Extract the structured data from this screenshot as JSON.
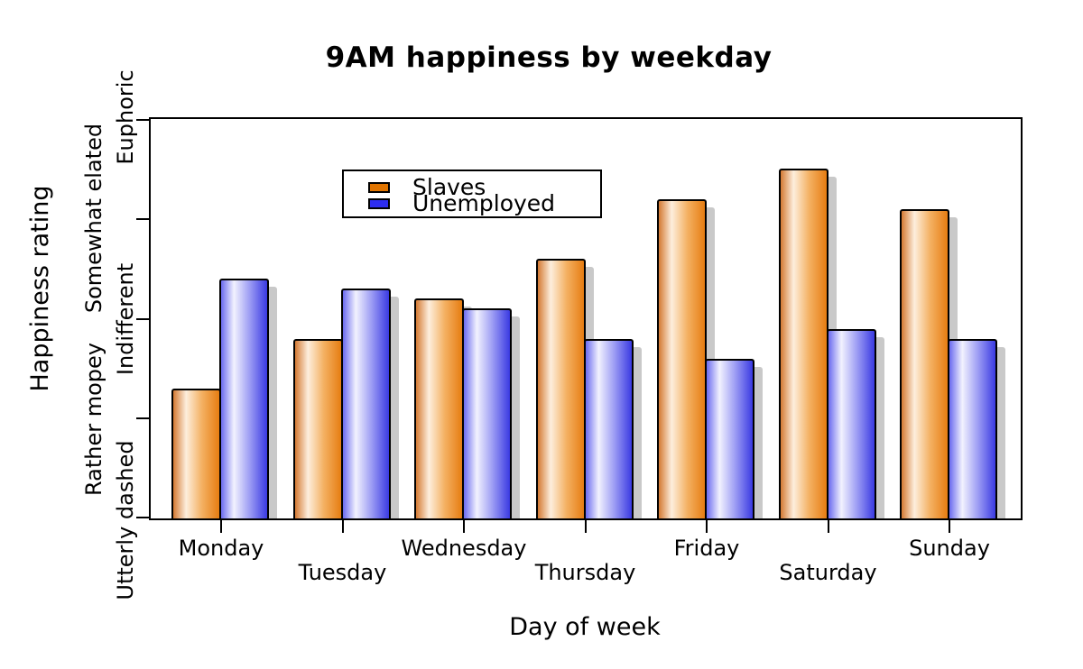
{
  "chart_data": {
    "type": "bar",
    "title": "9AM happiness by weekday",
    "xlabel": "Day of week",
    "ylabel": "Happiness rating",
    "categories": [
      "Monday",
      "Tuesday",
      "Wednesday",
      "Thursday",
      "Friday",
      "Saturday",
      "Sunday"
    ],
    "series": [
      {
        "name": "Slaves",
        "values": [
          2.3,
          2.8,
          3.2,
          3.6,
          4.2,
          4.5,
          4.1
        ]
      },
      {
        "name": "Unemployed",
        "values": [
          3.4,
          3.3,
          3.1,
          2.8,
          2.6,
          2.9,
          2.8
        ]
      }
    ],
    "y_tick_labels_bottom_to_top": [
      "Utterly dashed",
      "Rather mopey",
      "Indifferent",
      "Somewhat elated",
      "Euphoric"
    ],
    "ylim": [
      1,
      5
    ],
    "grid": false,
    "legend_position": "upper-left-inside",
    "x_tick_label_layout": "staggered-two-rows",
    "y_tick_label_layout": "staggered-two-columns"
  },
  "colors": {
    "slaves_edge": "#d47a33",
    "slaves_light": "#fdeedd",
    "slaves_mid": "#f4b163",
    "slaves_main": "#e67d12",
    "unemployed_edge": "#6b6bef",
    "unemployed_light": "#f2f2fe",
    "unemployed_mid": "#9d9df4",
    "unemployed_main": "#3a3ae2",
    "legend_slaves_swatch": "#e07400",
    "legend_unemployed_swatch": "#2d2df0",
    "bar_shadow": "#c9c9c9",
    "axis": "#000000",
    "text": "#000000"
  }
}
